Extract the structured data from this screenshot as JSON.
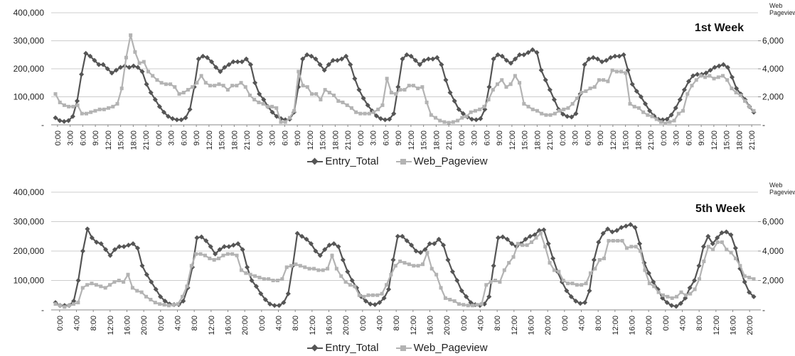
{
  "colors": {
    "entry": "#555555",
    "web": "#b3b3b3",
    "grid": "#cccccc",
    "axis": "#888888"
  },
  "chart_data": [
    {
      "type": "line",
      "title": "1st Week",
      "ylabel_left": "",
      "ylabel_right": "Web Pageview",
      "ylim_left": [
        0,
        400000
      ],
      "ylim_right": [
        0,
        8000
      ],
      "yticks_left": [
        "-",
        "100,000",
        "200,000",
        "300,000",
        "400,000"
      ],
      "yticks_right": [
        "-",
        "2,000",
        "4,000",
        "6,000"
      ],
      "xtick_labels": [
        "0:00",
        "3:00",
        "6:00",
        "9:00",
        "12:00",
        "15:00",
        "18:00",
        "21:00",
        "0:00",
        "3:00",
        "6:00",
        "9:00",
        "12:00",
        "15:00",
        "18:00",
        "21:00",
        "0:00",
        "3:00",
        "6:00",
        "9:00",
        "12:00",
        "15:00",
        "18:00",
        "21:00",
        "0:00",
        "3:00",
        "6:00",
        "9:00",
        "12:00",
        "15:00",
        "18:00",
        "21:00",
        "0:00",
        "3:00",
        "6:00",
        "9:00",
        "12:00",
        "15:00",
        "18:00",
        "21:00",
        "0:00",
        "3:00",
        "6:00",
        "9:00",
        "12:00",
        "15:00",
        "18:00",
        "21:00",
        "0:00",
        "3:00",
        "6:00",
        "9:00",
        "12:00",
        "15:00",
        "18:00",
        "21:00"
      ],
      "legend": [
        "Entry_Total",
        "Web_Pageview"
      ],
      "series": [
        {
          "name": "Entry_Total",
          "axis": "left",
          "values": [
            25000,
            15000,
            12000,
            15000,
            30000,
            85000,
            180000,
            255000,
            245000,
            230000,
            215000,
            215000,
            200000,
            185000,
            195000,
            205000,
            210000,
            205000,
            210000,
            205000,
            190000,
            145000,
            115000,
            90000,
            65000,
            45000,
            30000,
            22000,
            18000,
            18000,
            25000,
            55000,
            135000,
            235000,
            245000,
            240000,
            225000,
            205000,
            190000,
            205000,
            215000,
            225000,
            225000,
            225000,
            235000,
            215000,
            150000,
            110000,
            90000,
            65000,
            45000,
            30000,
            22000,
            18000,
            20000,
            45000,
            135000,
            235000,
            250000,
            245000,
            235000,
            215000,
            195000,
            215000,
            230000,
            230000,
            235000,
            245000,
            215000,
            165000,
            125000,
            95000,
            70000,
            50000,
            32000,
            22000,
            18000,
            20000,
            40000,
            135000,
            235000,
            250000,
            245000,
            230000,
            215000,
            230000,
            235000,
            235000,
            240000,
            215000,
            160000,
            115000,
            85000,
            55000,
            40000,
            28000,
            20000,
            18000,
            22000,
            55000,
            135000,
            235000,
            250000,
            245000,
            230000,
            220000,
            235000,
            250000,
            250000,
            258000,
            268000,
            258000,
            195000,
            160000,
            125000,
            90000,
            55000,
            38000,
            30000,
            28000,
            40000,
            110000,
            215000,
            235000,
            240000,
            235000,
            225000,
            230000,
            240000,
            245000,
            245000,
            250000,
            195000,
            145000,
            120000,
            100000,
            75000,
            50000,
            32000,
            20000,
            18000,
            20000,
            35000,
            60000,
            90000,
            125000,
            155000,
            175000,
            180000,
            180000,
            185000,
            195000,
            205000,
            210000,
            215000,
            205000,
            170000,
            130000,
            110000,
            90000,
            65000,
            45000
          ]
        },
        {
          "name": "Web_Pageview",
          "axis": "right",
          "values": [
            2200,
            1600,
            1400,
            1300,
            1300,
            1400,
            800,
            800,
            900,
            1000,
            1100,
            1100,
            1200,
            1300,
            1500,
            2600,
            4800,
            6400,
            5200,
            4400,
            4500,
            3800,
            3500,
            3200,
            3000,
            2900,
            2900,
            2700,
            2200,
            2300,
            2500,
            2700,
            3000,
            3500,
            3000,
            2800,
            2800,
            2900,
            2800,
            2500,
            2800,
            2800,
            3000,
            2700,
            2100,
            1800,
            1600,
            1500,
            1300,
            1300,
            1200,
            200,
            200,
            500,
            1000,
            3800,
            2800,
            2700,
            2200,
            2200,
            1800,
            2500,
            2300,
            2100,
            1700,
            1600,
            1400,
            1200,
            900,
            800,
            800,
            800,
            900,
            1100,
            1400,
            3300,
            2300,
            2200,
            2500,
            2500,
            2800,
            2800,
            2600,
            2700,
            1600,
            700,
            500,
            300,
            200,
            150,
            200,
            300,
            500,
            600,
            900,
            1000,
            1100,
            1300,
            1800,
            2500,
            2900,
            3200,
            2700,
            2900,
            3500,
            3000,
            1500,
            1300,
            1100,
            1000,
            800,
            700,
            700,
            800,
            1000,
            1100,
            1200,
            1500,
            1900,
            2300,
            2400,
            2600,
            2700,
            3200,
            3200,
            3100,
            3900,
            3800,
            3800,
            3700,
            1500,
            1300,
            1200,
            900,
            700,
            600,
            400,
            200,
            100,
            200,
            300,
            800,
            1000,
            2200,
            2800,
            3200,
            3500,
            3400,
            3500,
            3300,
            3400,
            3500,
            3200,
            2600,
            2300,
            2100,
            1700,
            1300,
            1000
          ]
        }
      ]
    },
    {
      "type": "line",
      "title": "5th Week",
      "ylabel_left": "",
      "ylabel_right": "Web Pageview",
      "ylim_left": [
        0,
        400000
      ],
      "ylim_right": [
        0,
        8000
      ],
      "yticks_left": [
        "-",
        "100,000",
        "200,000",
        "300,000",
        "400,000"
      ],
      "yticks_right": [
        "-",
        "2,000",
        "4,000",
        "6,000"
      ],
      "xtick_labels": [
        "0:00",
        "4:00",
        "8:00",
        "12:00",
        "16:00",
        "20:00",
        "0:00",
        "4:00",
        "8:00",
        "12:00",
        "16:00",
        "20:00",
        "0:00",
        "4:00",
        "8:00",
        "12:00",
        "16:00",
        "20:00",
        "0:00",
        "4:00",
        "8:00",
        "12:00",
        "16:00",
        "20:00",
        "0:00",
        "4:00",
        "8:00",
        "12:00",
        "16:00",
        "20:00",
        "0:00",
        "4:00",
        "8:00",
        "12:00",
        "16:00",
        "20:00",
        "0:00",
        "4:00",
        "8:00",
        "12:00",
        "16:00",
        "20:00"
      ],
      "legend": [
        "Entry_Total",
        "Web_Pageview"
      ],
      "series": [
        {
          "name": "Entry_Total",
          "axis": "left",
          "values": [
            25000,
            15000,
            15000,
            15000,
            30000,
            100000,
            200000,
            275000,
            245000,
            230000,
            225000,
            205000,
            185000,
            205000,
            215000,
            215000,
            220000,
            225000,
            210000,
            150000,
            120000,
            95000,
            70000,
            45000,
            30000,
            20000,
            18000,
            18000,
            30000,
            75000,
            145000,
            245000,
            248000,
            235000,
            215000,
            190000,
            205000,
            215000,
            215000,
            220000,
            225000,
            205000,
            145000,
            100000,
            80000,
            55000,
            35000,
            20000,
            15000,
            15000,
            25000,
            55000,
            150000,
            260000,
            250000,
            240000,
            225000,
            200000,
            185000,
            205000,
            220000,
            225000,
            215000,
            170000,
            130000,
            100000,
            75000,
            45000,
            30000,
            20000,
            18000,
            25000,
            40000,
            70000,
            170000,
            250000,
            250000,
            235000,
            220000,
            200000,
            195000,
            205000,
            225000,
            225000,
            240000,
            220000,
            170000,
            130000,
            100000,
            65000,
            45000,
            25000,
            18000,
            15000,
            20000,
            45000,
            150000,
            245000,
            248000,
            240000,
            225000,
            215000,
            225000,
            240000,
            250000,
            255000,
            270000,
            272000,
            225000,
            175000,
            130000,
            95000,
            65000,
            45000,
            30000,
            22000,
            25000,
            65000,
            170000,
            230000,
            260000,
            275000,
            265000,
            270000,
            280000,
            285000,
            290000,
            280000,
            225000,
            160000,
            125000,
            95000,
            70000,
            40000,
            25000,
            15000,
            12000,
            22000,
            40000,
            75000,
            100000,
            150000,
            215000,
            250000,
            225000,
            245000,
            262000,
            265000,
            255000,
            210000,
            140000,
            95000,
            60000,
            45000
          ]
        },
        {
          "name": "Web_Pageview",
          "axis": "right",
          "values": [
            400,
            300,
            200,
            300,
            400,
            500,
            1500,
            1700,
            1800,
            1700,
            1600,
            1500,
            1700,
            1900,
            2000,
            1900,
            2400,
            1500,
            1300,
            1200,
            900,
            700,
            500,
            400,
            350,
            300,
            350,
            400,
            900,
            1600,
            3000,
            3800,
            3800,
            3700,
            3500,
            3400,
            3500,
            3700,
            3800,
            3800,
            3700,
            2700,
            2500,
            2400,
            2300,
            2200,
            2100,
            2100,
            2000,
            2000,
            2100,
            2900,
            3000,
            3100,
            3000,
            2900,
            2800,
            2800,
            2700,
            2700,
            2800,
            3700,
            2800,
            2300,
            1900,
            1700,
            1600,
            1000,
            900,
            1000,
            1000,
            1000,
            1100,
            1700,
            2400,
            3000,
            3300,
            3200,
            3100,
            3000,
            3000,
            3100,
            3900,
            2800,
            2400,
            1500,
            800,
            700,
            600,
            400,
            350,
            300,
            300,
            350,
            400,
            1700,
            1900,
            2000,
            1900,
            2700,
            3200,
            3600,
            4500,
            4400,
            4400,
            4600,
            4900,
            5200,
            4300,
            3200,
            2700,
            2600,
            2000,
            1800,
            1800,
            1700,
            1700,
            1800,
            2500,
            2800,
            3400,
            3500,
            4700,
            4700,
            4700,
            4700,
            4200,
            4300,
            4300,
            4000,
            2700,
            1800,
            1600,
            1200,
            1000,
            900,
            800,
            900,
            1200,
            1000,
            1100,
            1400,
            2100,
            3300,
            4300,
            4100,
            4600,
            4600,
            4100,
            3900,
            3500,
            3000,
            2300,
            2200,
            2100
          ]
        }
      ]
    }
  ]
}
